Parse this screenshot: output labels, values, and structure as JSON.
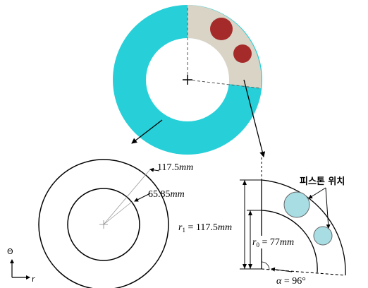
{
  "colors": {
    "annulus": "#27cfd8",
    "sector": "#d9d4c6",
    "piston_top": "#a52a2a",
    "piston_bottom": "#a8dde4",
    "line": "#000000"
  },
  "labels": {
    "outer_dim": {
      "num": "117.5",
      "unit": "mm"
    },
    "inner_dim": {
      "num": "65.85",
      "unit": "mm"
    },
    "piston_position": "피스톤 위치",
    "r1": {
      "sym": "r",
      "sub": "1",
      "eq": " = 117.5",
      "unit": "mm"
    },
    "r0": {
      "sym": "r",
      "sub": "0",
      "eq": " = 77",
      "unit": "mm"
    },
    "alpha": {
      "sym": "α",
      "eq": " = 96°"
    },
    "axis_theta": "Θ",
    "axis_r": "r"
  }
}
